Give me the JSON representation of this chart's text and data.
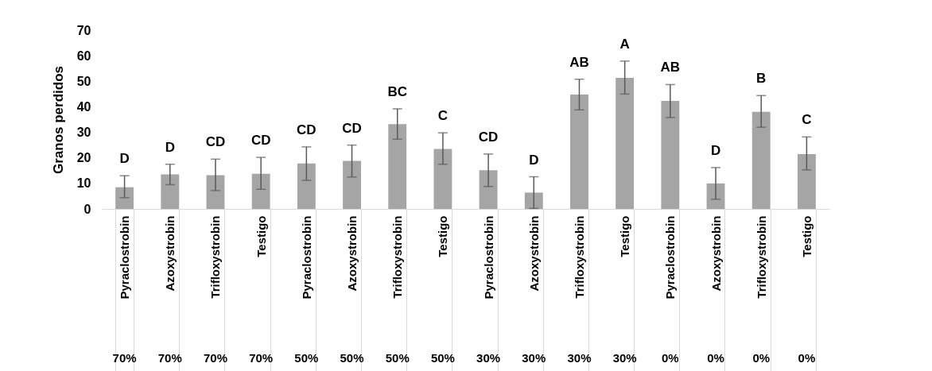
{
  "chart_data": {
    "type": "bar",
    "ylabel": "Granos perdidos",
    "categories": [
      "Pyraclostrobin",
      "Azoxystrobin",
      "Trifloxystrobin",
      "Testigo",
      "Pyraclostrobin",
      "Azoxystrobin",
      "Trifloxystrobin",
      "Testigo",
      "Pyraclostrobin",
      "Azoxystrobin",
      "Trifloxystrobin",
      "Testigo",
      "Pyraclostrobin",
      "Azoxystrobin",
      "Trifloxystrobin",
      "Testigo"
    ],
    "annotations": [
      "70%",
      "70%",
      "70%",
      "70%",
      "50%",
      "50%",
      "50%",
      "50%",
      "30%",
      "30%",
      "30%",
      "30%",
      "0%",
      "0%",
      "0%",
      "0%"
    ],
    "series": [
      {
        "color": "#a5a5a5",
        "values": [
          8.5,
          13.5,
          13.2,
          13.8,
          17.8,
          18.8,
          33.2,
          23.5,
          15.2,
          6.4,
          44.8,
          51.3,
          42.3,
          10,
          38,
          21.5
        ],
        "errors": [
          [
            4.4,
            13
          ],
          [
            9.5,
            17.5
          ],
          [
            7.2,
            19.5
          ],
          [
            7.7,
            20.2
          ],
          [
            11.2,
            24.3
          ],
          [
            12.5,
            25
          ],
          [
            27.3,
            39.2
          ],
          [
            17.5,
            29.8
          ],
          [
            8.8,
            21.5
          ],
          [
            0.2,
            12.6
          ],
          [
            38.8,
            50.8
          ],
          [
            45,
            57.9
          ],
          [
            35.8,
            48.7
          ],
          [
            3.8,
            16.2
          ],
          [
            32,
            44.4
          ],
          [
            15.3,
            28.2
          ]
        ],
        "value_labels": [
          "D",
          "D",
          "CD",
          "CD",
          "CD",
          "CD",
          "BC",
          "C",
          "CD",
          "D",
          "AB",
          "A",
          "AB",
          "D",
          "B",
          "C"
        ]
      }
    ],
    "ylim": [
      0,
      70
    ],
    "yticks": [
      0,
      10,
      20,
      30,
      40,
      50,
      60,
      70
    ],
    "grid": false
  }
}
